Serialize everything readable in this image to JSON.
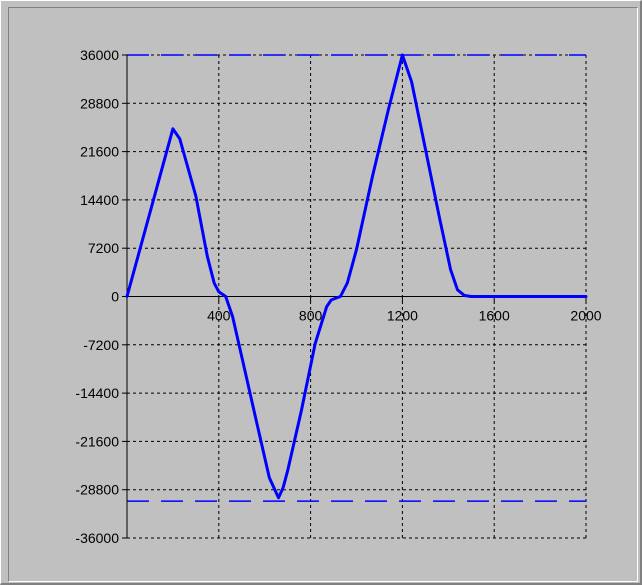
{
  "chart_data": {
    "type": "line",
    "title": "",
    "xlabel": "",
    "ylabel": "",
    "xlim": [
      0,
      2000
    ],
    "ylim": [
      -36000,
      36000
    ],
    "x_ticks": [
      "400",
      "800",
      "1200",
      "1600",
      "2000"
    ],
    "y_ticks": [
      "36000",
      "28800",
      "21600",
      "14400",
      "7200",
      "0",
      "-7200",
      "-14400",
      "-21600",
      "-28800",
      "-36000"
    ],
    "grid": true,
    "limit_lines": [
      36000,
      -30500
    ],
    "colors": {
      "series": "#0000ff",
      "limit": "#0000ff",
      "grid": "#000000",
      "background": "#c0c0c0"
    },
    "series": [
      {
        "x": [
          0,
          20,
          200,
          230,
          300,
          350,
          380,
          400,
          430,
          460,
          500,
          560,
          620,
          660,
          680,
          700,
          760,
          820,
          870,
          890,
          930,
          960,
          1000,
          1070,
          1140,
          1200,
          1240,
          1300,
          1360,
          1410,
          1440,
          1470,
          1500,
          1600,
          1800,
          2000
        ],
        "y": [
          0,
          2500,
          25000,
          23500,
          15000,
          6000,
          2000,
          700,
          0,
          -3000,
          -9000,
          -18000,
          -27000,
          -30000,
          -28500,
          -26000,
          -17000,
          -7000,
          -1500,
          -500,
          0,
          2000,
          7000,
          18000,
          28000,
          36000,
          32000,
          22000,
          12000,
          4000,
          1000,
          150,
          0,
          0,
          0,
          0
        ]
      }
    ]
  }
}
